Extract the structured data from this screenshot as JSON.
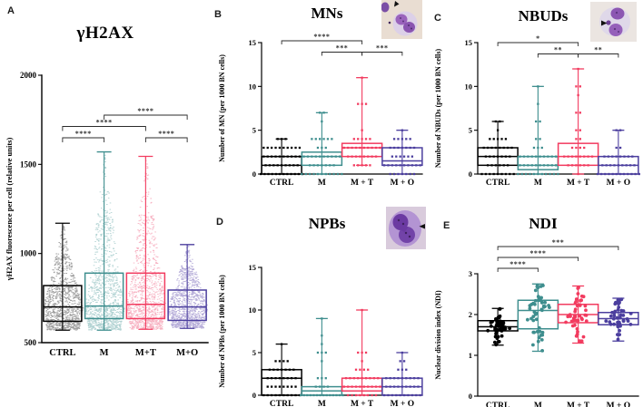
{
  "chart_data": [
    {
      "id": "A",
      "panel": "A",
      "type": "box-scatter",
      "title": "γH2AX",
      "ylabel": "γH2AX fluorescence per cell (relative units)",
      "ylim": [
        500,
        2000
      ],
      "yticks": [
        500,
        1000,
        1500,
        2000
      ],
      "categories": [
        "CTRL",
        "M",
        "M+T",
        "M+O"
      ],
      "point_style": "dense-dash",
      "groups": [
        {
          "name": "CTRL",
          "color": "#000000",
          "light": "#8F8F8F",
          "lo": 570,
          "q1": 620,
          "med": 700,
          "q3": 820,
          "hi": 1170,
          "n": 1100
        },
        {
          "name": "M",
          "color": "#3E8E8E",
          "light": "#A4CBCB",
          "lo": 570,
          "q1": 635,
          "med": 705,
          "q3": 890,
          "hi": 1570,
          "n": 1100
        },
        {
          "name": "M+T",
          "color": "#F23B5F",
          "light": "#F6A6B8",
          "lo": 575,
          "q1": 635,
          "med": 715,
          "q3": 890,
          "hi": 1545,
          "n": 1100
        },
        {
          "name": "M+O",
          "color": "#4B3E9E",
          "light": "#ABA1D3",
          "lo": 580,
          "q1": 625,
          "med": 700,
          "q3": 795,
          "hi": 1050,
          "n": 1100
        }
      ],
      "significance": [
        {
          "g1": 0,
          "g2": 1,
          "label": "****",
          "level": 1
        },
        {
          "g1": 0,
          "g2": 2,
          "label": "****",
          "level": 2
        },
        {
          "g1": 1,
          "g2": 3,
          "label": "****",
          "level": 3
        },
        {
          "g1": 2,
          "g2": 3,
          "label": "****",
          "level": 1
        }
      ]
    },
    {
      "id": "B",
      "panel": "B",
      "type": "box-dotplot",
      "title": "MNs",
      "ylabel": "Number of MN (per 1000 BN cells)",
      "ylim": [
        0,
        15
      ],
      "yticks": [
        0,
        5,
        10,
        15
      ],
      "categories": [
        "CTRL",
        "M",
        "M + T",
        "M + O"
      ],
      "point_style": "integer-dots",
      "inset_icon": "micrograph-binucleated-cell-with-micronucleus",
      "groups": [
        {
          "name": "CTRL",
          "color": "#000000",
          "lo": 0,
          "q1": 0,
          "med": 1,
          "q3": 2,
          "hi": 4,
          "dots": [
            [
              0,
              12
            ],
            [
              1,
              9
            ],
            [
              2,
              10
            ],
            [
              3,
              10
            ],
            [
              4,
              3
            ]
          ]
        },
        {
          "name": "M",
          "color": "#3E8E8E",
          "lo": 0,
          "q1": 1,
          "med": 2,
          "q3": 2.5,
          "hi": 7,
          "dots": [
            [
              0,
              11
            ],
            [
              1,
              7
            ],
            [
              2,
              10
            ],
            [
              3,
              3
            ],
            [
              4,
              6
            ],
            [
              6,
              1
            ],
            [
              7,
              2
            ]
          ]
        },
        {
          "name": "M + T",
          "color": "#F23B5F",
          "lo": 1,
          "q1": 2,
          "med": 3,
          "q3": 3.5,
          "hi": 11,
          "dots": [
            [
              1,
              5
            ],
            [
              2,
              8
            ],
            [
              3,
              10
            ],
            [
              4,
              5
            ],
            [
              5,
              1
            ],
            [
              8,
              3
            ],
            [
              11,
              1
            ]
          ]
        },
        {
          "name": "M + O",
          "color": "#4B3E9E",
          "lo": 0,
          "q1": 1,
          "med": 1.5,
          "q3": 3,
          "hi": 5,
          "dots": [
            [
              0,
              7
            ],
            [
              1,
              10
            ],
            [
              2,
              6
            ],
            [
              3,
              7
            ],
            [
              4,
              5
            ],
            [
              5,
              1
            ]
          ]
        }
      ],
      "significance": [
        {
          "g1": 0,
          "g2": 2,
          "label": "****",
          "level": 2
        },
        {
          "g1": 1,
          "g2": 2,
          "label": "***",
          "level": 1
        },
        {
          "g1": 2,
          "g2": 3,
          "label": "***",
          "level": 1
        }
      ]
    },
    {
      "id": "C",
      "panel": "C",
      "type": "box-dotplot",
      "title": "NBUDs",
      "ylabel": "Number of NBUDs (per 1000 BN cells)",
      "ylim": [
        0,
        15
      ],
      "yticks": [
        0,
        5,
        10,
        15
      ],
      "categories": [
        "CTRL",
        "M",
        "M + T",
        "M + O"
      ],
      "point_style": "integer-dots",
      "inset_icon": "micrograph-binucleated-cell-with-nuclear-bud",
      "groups": [
        {
          "name": "CTRL",
          "color": "#000000",
          "lo": 0,
          "q1": 1,
          "med": 2,
          "q3": 3,
          "hi": 6,
          "dots": [
            [
              0,
              9
            ],
            [
              1,
              6
            ],
            [
              2,
              7
            ],
            [
              3,
              8
            ],
            [
              4,
              5
            ],
            [
              5,
              1
            ],
            [
              6,
              2
            ]
          ]
        },
        {
          "name": "M",
          "color": "#3E8E8E",
          "lo": 0,
          "q1": 0.5,
          "med": 1,
          "q3": 2,
          "hi": 10,
          "dots": [
            [
              0,
              11
            ],
            [
              1,
              10
            ],
            [
              2,
              10
            ],
            [
              3,
              3
            ],
            [
              4,
              2
            ],
            [
              6,
              2
            ],
            [
              8,
              1
            ],
            [
              10,
              1
            ]
          ]
        },
        {
          "name": "M + T",
          "color": "#F23B5F",
          "lo": 0,
          "q1": 1,
          "med": 2,
          "q3": 3.5,
          "hi": 12,
          "dots": [
            [
              0,
              1
            ],
            [
              1,
              6
            ],
            [
              2,
              8
            ],
            [
              3,
              4
            ],
            [
              4,
              2
            ],
            [
              5,
              2
            ],
            [
              7,
              2
            ],
            [
              9,
              1
            ],
            [
              10,
              2
            ],
            [
              12,
              1
            ]
          ]
        },
        {
          "name": "M + O",
          "color": "#4B3E9E",
          "lo": 0,
          "q1": 0,
          "med": 1,
          "q3": 2,
          "hi": 5,
          "dots": [
            [
              0,
              12
            ],
            [
              1,
              9
            ],
            [
              2,
              8
            ],
            [
              3,
              2
            ],
            [
              5,
              2
            ]
          ]
        }
      ],
      "significance": [
        {
          "g1": 0,
          "g2": 2,
          "label": "*",
          "level": 2
        },
        {
          "g1": 1,
          "g2": 2,
          "label": "**",
          "level": 1
        },
        {
          "g1": 2,
          "g2": 3,
          "label": "**",
          "level": 1
        }
      ]
    },
    {
      "id": "D",
      "panel": "D",
      "type": "box-dotplot",
      "title": "NPBs",
      "ylabel": "Number of NPBs (per 1000 BN cells)",
      "ylim": [
        0,
        15
      ],
      "yticks": [
        0,
        5,
        10,
        15
      ],
      "categories": [
        "CTRL",
        "M",
        "M + T",
        "M + O"
      ],
      "point_style": "integer-dots",
      "inset_icon": "micrograph-binucleated-cell-with-nucleoplasmic-bridge",
      "groups": [
        {
          "name": "CTRL",
          "color": "#000000",
          "lo": 0,
          "q1": 0,
          "med": 2,
          "q3": 3,
          "hi": 6,
          "dots": [
            [
              0,
              10
            ],
            [
              1,
              8
            ],
            [
              2,
              8
            ],
            [
              3,
              7
            ],
            [
              4,
              4
            ],
            [
              6,
              1
            ]
          ]
        },
        {
          "name": "M",
          "color": "#3E8E8E",
          "lo": 0,
          "q1": 0,
          "med": 0.5,
          "q3": 1,
          "hi": 9,
          "dots": [
            [
              0,
              14
            ],
            [
              1,
              4
            ],
            [
              2,
              3
            ],
            [
              4,
              1
            ],
            [
              5,
              3
            ],
            [
              6,
              1
            ],
            [
              7,
              1
            ],
            [
              9,
              1
            ]
          ]
        },
        {
          "name": "M + T",
          "color": "#F23B5F",
          "lo": 0,
          "q1": 0.5,
          "med": 1,
          "q3": 2,
          "hi": 10,
          "dots": [
            [
              0,
              8
            ],
            [
              1,
              10
            ],
            [
              2,
              9
            ],
            [
              3,
              4
            ],
            [
              4,
              1
            ],
            [
              5,
              3
            ],
            [
              10,
              1
            ]
          ]
        },
        {
          "name": "M + O",
          "color": "#4B3E9E",
          "lo": 0,
          "q1": 0,
          "med": 1,
          "q3": 2,
          "hi": 5,
          "dots": [
            [
              0,
              10
            ],
            [
              1,
              9
            ],
            [
              2,
              9
            ],
            [
              3,
              3
            ],
            [
              4,
              2
            ],
            [
              5,
              1
            ]
          ]
        }
      ],
      "significance": []
    },
    {
      "id": "E",
      "panel": "E",
      "type": "box-scatter",
      "title": "NDI",
      "ylabel": "Nuclear division index (NDI)",
      "ylim": [
        0,
        3
      ],
      "yticks": [
        0,
        1,
        2,
        3
      ],
      "categories": [
        "CTRL",
        "M",
        "M + T",
        "M + O"
      ],
      "point_style": "jitter",
      "groups": [
        {
          "name": "CTRL",
          "color": "#000000",
          "lo": 1.25,
          "q1": 1.6,
          "med": 1.7,
          "q3": 1.85,
          "hi": 2.15,
          "n": 55
        },
        {
          "name": "M",
          "color": "#3E8E8E",
          "lo": 1.1,
          "q1": 1.65,
          "med": 2.1,
          "q3": 2.35,
          "hi": 2.75,
          "n": 50
        },
        {
          "name": "M + T",
          "color": "#F23B5F",
          "lo": 1.3,
          "q1": 1.8,
          "med": 2.0,
          "q3": 2.25,
          "hi": 2.7,
          "n": 45
        },
        {
          "name": "M + O",
          "color": "#4B3E9E",
          "lo": 1.35,
          "q1": 1.75,
          "med": 1.9,
          "q3": 2.05,
          "hi": 2.4,
          "n": 45
        }
      ],
      "significance": [
        {
          "g1": 0,
          "g2": 1,
          "label": "****",
          "level": 1
        },
        {
          "g1": 0,
          "g2": 2,
          "label": "****",
          "level": 2
        },
        {
          "g1": 0,
          "g2": 3,
          "label": "***",
          "level": 3
        }
      ]
    }
  ]
}
